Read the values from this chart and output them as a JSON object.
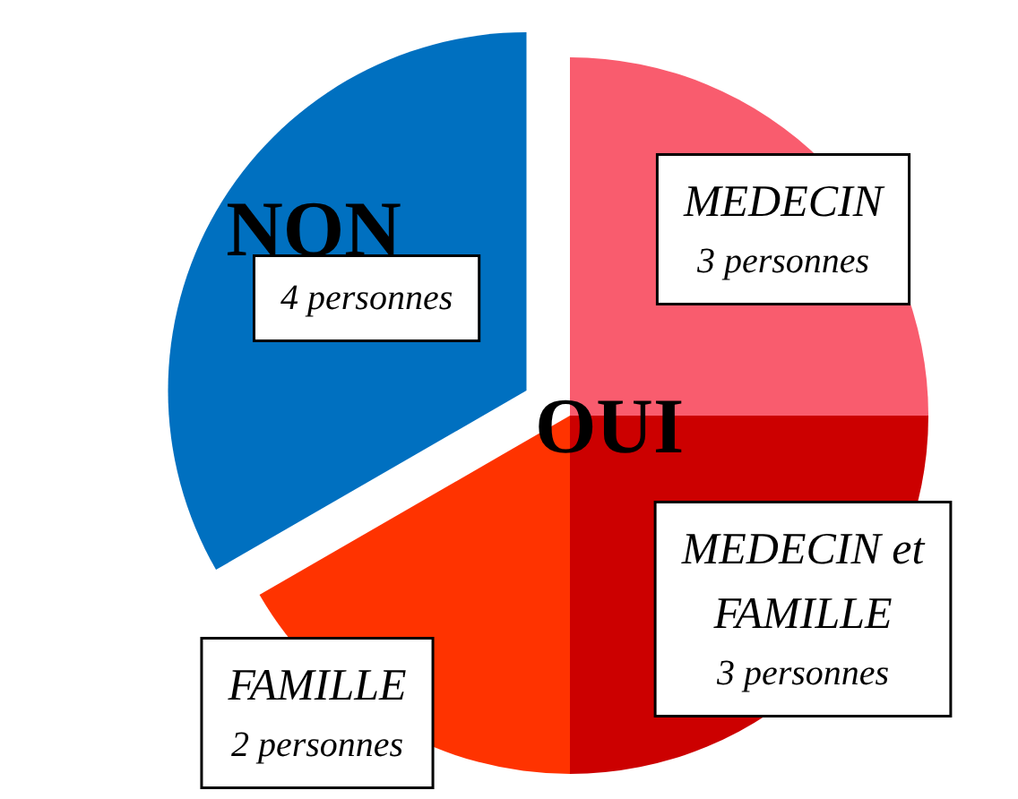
{
  "chart_data": {
    "type": "pie",
    "categories": [
      "MEDECIN",
      "MEDECIN et FAMILLE",
      "FAMILLE",
      null
    ],
    "values": [
      3,
      3,
      2,
      4
    ],
    "value_labels": [
      "3 personnes",
      "3 personnes",
      "2 personnes",
      "4 personnes"
    ],
    "colors": [
      "#f95c6e",
      "#cc0000",
      "#ff3300",
      "#0070c0"
    ],
    "annotations": [
      "NON",
      "OUI"
    ],
    "legend": false
  }
}
